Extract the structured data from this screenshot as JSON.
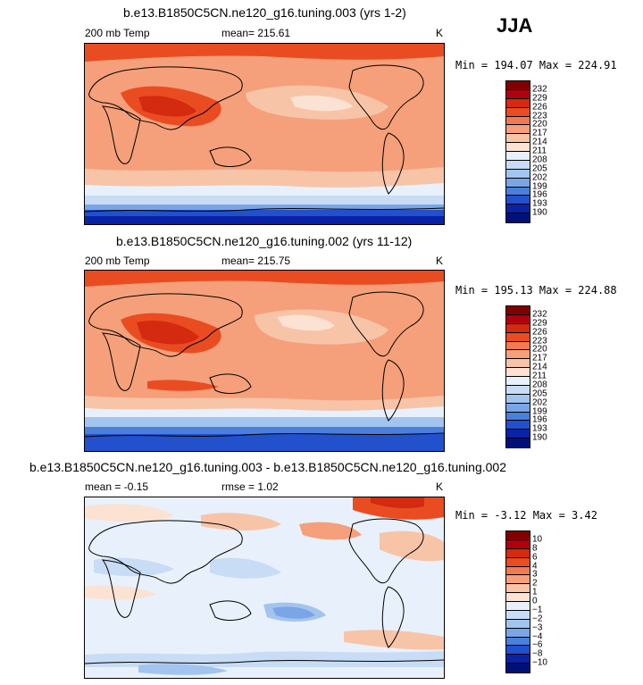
{
  "season_label": "JJA",
  "panels": [
    {
      "title": "b.e13.B1850C5CN.ne120_g16.tuning.003 (yrs 1-2)",
      "variable": "200 mb Temp",
      "stat1": "mean= 215.61",
      "stat2": "",
      "units": "K",
      "minmax": "Min = 194.07 Max = 224.91",
      "colorbar": {
        "levels": [
          "232",
          "229",
          "226",
          "223",
          "220",
          "217",
          "214",
          "211",
          "208",
          "205",
          "202",
          "199",
          "196",
          "193",
          "190"
        ],
        "colors": [
          "#800000",
          "#b00010",
          "#d42a10",
          "#ea4c22",
          "#f27a50",
          "#f5a07a",
          "#f8c4a8",
          "#fbe2d3",
          "#e8f1fb",
          "#c8dcf5",
          "#a3c4ee",
          "#7aa5e6",
          "#4a7fdc",
          "#2350cc",
          "#0a22a6",
          "#00107a"
        ]
      }
    },
    {
      "title": "b.e13.B1850C5CN.ne120_g16.tuning.002 (yrs 11-12)",
      "variable": "200 mb Temp",
      "stat1": "mean= 215.75",
      "stat2": "",
      "units": "K",
      "minmax": "Min = 195.13 Max = 224.88",
      "colorbar": {
        "levels": [
          "232",
          "229",
          "226",
          "223",
          "220",
          "217",
          "214",
          "211",
          "208",
          "205",
          "202",
          "199",
          "196",
          "193",
          "190"
        ],
        "colors": [
          "#800000",
          "#b00010",
          "#d42a10",
          "#ea4c22",
          "#f27a50",
          "#f5a07a",
          "#f8c4a8",
          "#fbe2d3",
          "#e8f1fb",
          "#c8dcf5",
          "#a3c4ee",
          "#7aa5e6",
          "#4a7fdc",
          "#2350cc",
          "#0a22a6",
          "#00107a"
        ]
      }
    },
    {
      "title": "b.e13.B1850C5CN.ne120_g16.tuning.003 - b.e13.B1850C5CN.ne120_g16.tuning.002",
      "variable": "mean =  -0.15",
      "stat1": "rmse =   1.02",
      "stat2": "",
      "units": "K",
      "minmax": "Min =  -3.12 Max =   3.42",
      "colorbar": {
        "levels": [
          "10",
          "8",
          "6",
          "4",
          "3",
          "2",
          "1",
          "0",
          "−1",
          "−2",
          "−3",
          "−4",
          "−6",
          "−8",
          "−10"
        ],
        "colors": [
          "#800000",
          "#b00010",
          "#d42a10",
          "#ea4c22",
          "#f27a50",
          "#f5a07a",
          "#f8c4a8",
          "#fbe2d3",
          "#e8f1fb",
          "#c8dcf5",
          "#a3c4ee",
          "#7aa5e6",
          "#4a7fdc",
          "#2350cc",
          "#0a22a6",
          "#00107a"
        ]
      }
    }
  ]
}
